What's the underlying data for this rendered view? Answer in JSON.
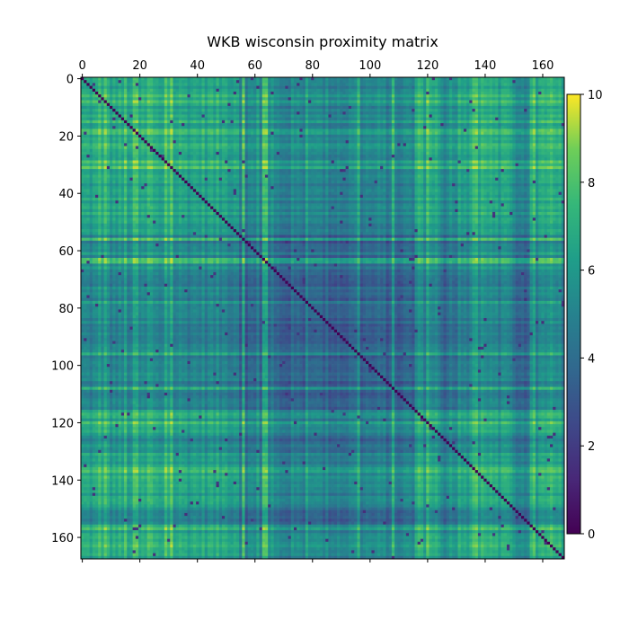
{
  "chart_data": {
    "type": "heatmap",
    "title": "WKB wisconsin proximity matrix",
    "xlabel": "",
    "ylabel": "",
    "n": 168,
    "x_ticks": [
      0,
      20,
      40,
      60,
      80,
      100,
      120,
      140,
      160
    ],
    "y_ticks": [
      0,
      20,
      40,
      60,
      80,
      100,
      120,
      140,
      160
    ],
    "x_tick_labels": [
      "0",
      "20",
      "40",
      "60",
      "80",
      "100",
      "120",
      "140",
      "160"
    ],
    "y_tick_labels": [
      "0",
      "20",
      "40",
      "60",
      "80",
      "100",
      "120",
      "140",
      "160"
    ],
    "x_axis_position": "top",
    "colormap": "viridis",
    "colorbar": {
      "min": 0,
      "max": 10,
      "ticks": [
        0,
        2,
        4,
        6,
        8,
        10
      ],
      "tick_labels": [
        "0",
        "2",
        "4",
        "6",
        "8",
        "10"
      ],
      "position": "right"
    },
    "diagonal_value": 0,
    "typical_range": [
      1.5,
      9.5
    ],
    "grid": false
  }
}
